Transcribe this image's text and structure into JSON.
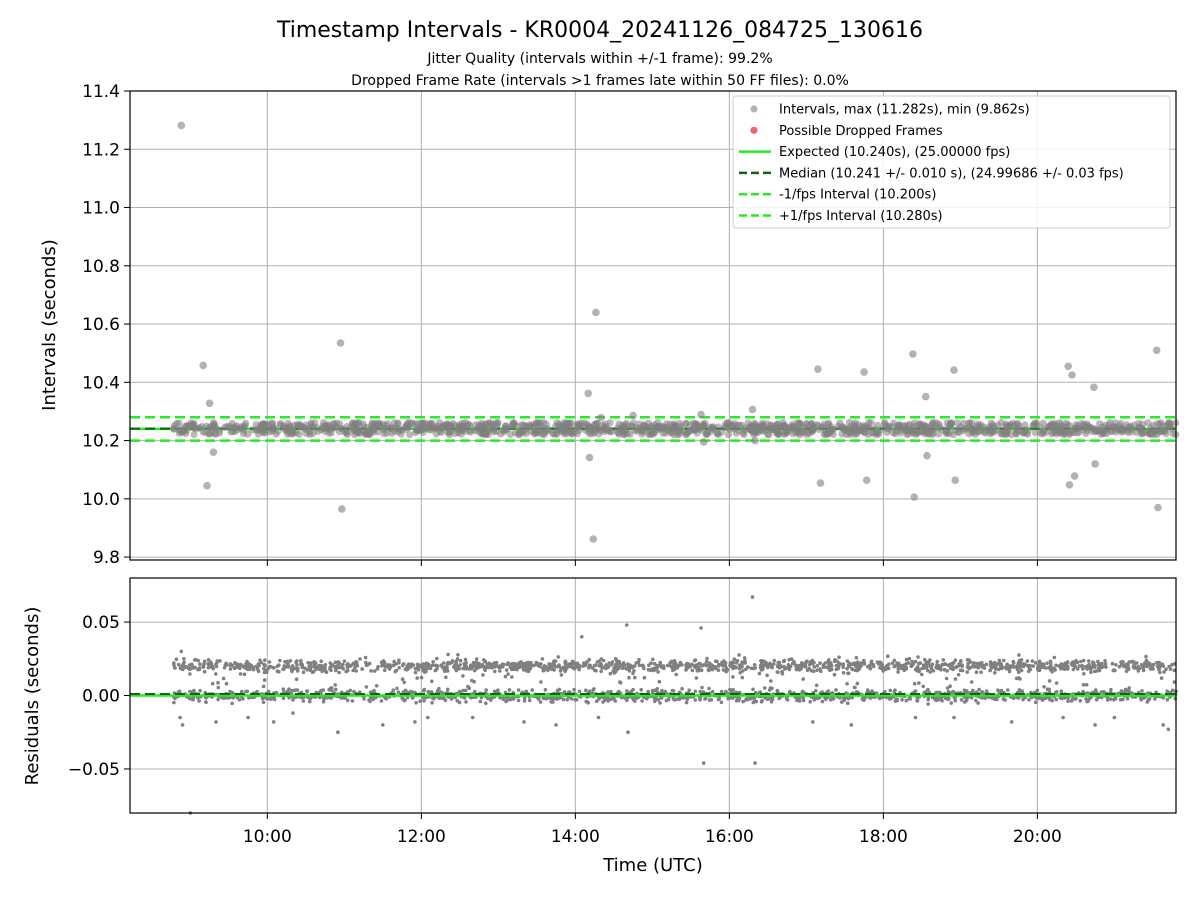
{
  "figure": {
    "title": "Timestamp Intervals - KR0004_20241126_084725_130616",
    "subtitle_1": "Jitter Quality (intervals within +/-1 frame): 99.2%",
    "subtitle_2": "Dropped Frame Rate (intervals >1 frames late within 50 FF files): 0.0%"
  },
  "colors": {
    "points": "#808080",
    "dropped": "#ee5555",
    "expected": "#22ee22",
    "median": "#116611",
    "bounds": "#22ee22",
    "grid": "#b0b0b0"
  },
  "chart_data": [
    {
      "type": "scatter",
      "ylabel": "Intervals (seconds)",
      "xlim": [
        "08:13",
        "21:48"
      ],
      "ylim": [
        9.79,
        11.4
      ],
      "yticks": [
        "9.8",
        "10.0",
        "10.2",
        "10.4",
        "10.6",
        "10.8",
        "11.0",
        "11.2",
        "11.4"
      ],
      "ytick_values": [
        9.8,
        10.0,
        10.2,
        10.4,
        10.6,
        10.8,
        11.0,
        11.2,
        11.4
      ],
      "xticks": [
        "10:00",
        "12:00",
        "14:00",
        "16:00",
        "18:00",
        "20:00"
      ],
      "legend_position": "upper right",
      "legend": [
        "Intervals, max (11.282s), min (9.862s)",
        "Possible Dropped Frames",
        "Expected (10.240s), (25.00000 fps)",
        "Median (10.241 +/- 0.010 s), (24.99686 +/- 0.03 fps)",
        "-1/fps Interval (10.200s)",
        "+1/fps Interval (10.280s)"
      ],
      "lines": {
        "expected": 10.24,
        "median": 10.241,
        "lower_bound": 10.2,
        "upper_bound": 10.28
      },
      "dense_band": {
        "x_start": "08:47",
        "x_end": "21:48",
        "y_low": 10.22,
        "y_high": 10.262
      },
      "outliers": {
        "x": [
          "08:53",
          "09:10",
          "09:13",
          "09:15",
          "09:18",
          "10:57",
          "10:58",
          "14:10",
          "14:11",
          "14:14",
          "14:16",
          "14:20",
          "14:45",
          "15:38",
          "15:40",
          "16:18",
          "16:20",
          "17:09",
          "17:11",
          "17:45",
          "17:47",
          "18:23",
          "18:24",
          "18:33",
          "18:34",
          "18:55",
          "18:56",
          "20:24",
          "20:25",
          "20:27",
          "20:29",
          "20:44",
          "20:45",
          "21:33",
          "21:34"
        ],
        "y": [
          11.282,
          10.458,
          10.045,
          10.328,
          10.16,
          10.535,
          9.965,
          10.362,
          10.142,
          9.862,
          10.64,
          10.279,
          10.286,
          10.289,
          10.195,
          10.307,
          10.2,
          10.445,
          10.054,
          10.435,
          10.064,
          10.497,
          10.006,
          10.351,
          10.148,
          10.442,
          10.064,
          10.455,
          10.048,
          10.425,
          10.078,
          10.383,
          10.12,
          10.51,
          9.97
        ]
      }
    },
    {
      "type": "scatter",
      "xlabel": "Time (UTC)",
      "ylabel": "Residuals (seconds)",
      "xlim": [
        "08:13",
        "21:48"
      ],
      "ylim": [
        -0.08,
        0.08
      ],
      "yticks": [
        "−0.05",
        "0.00",
        "0.05"
      ],
      "ytick_values": [
        -0.05,
        0.0,
        0.05
      ],
      "xticks": [
        "10:00",
        "12:00",
        "14:00",
        "16:00",
        "18:00",
        "20:00"
      ],
      "lines": {
        "expected": 0.0,
        "median": 0.001
      },
      "bands": [
        {
          "x_start": "08:47",
          "x_end": "21:48",
          "center": 0.02,
          "spread": 0.004
        },
        {
          "x_start": "08:47",
          "x_end": "21:48",
          "center": 0.0,
          "spread": 0.004
        }
      ],
      "outliers": {
        "x": [
          "08:52",
          "08:53",
          "08:54",
          "08:55",
          "09:20",
          "09:45",
          "10:05",
          "10:20",
          "10:55",
          "11:30",
          "11:55",
          "12:05",
          "12:40",
          "13:20",
          "13:45",
          "14:05",
          "14:18",
          "14:40",
          "14:41",
          "15:38",
          "15:40",
          "16:18",
          "16:20",
          "17:05",
          "17:35",
          "18:25",
          "18:55",
          "19:40",
          "20:20",
          "20:45",
          "21:00",
          "21:38",
          "21:42",
          "09:00"
        ],
        "y": [
          -0.015,
          0.03,
          -0.02,
          0.025,
          -0.018,
          -0.015,
          -0.018,
          -0.012,
          -0.025,
          -0.02,
          -0.018,
          -0.015,
          -0.015,
          -0.018,
          -0.02,
          0.04,
          -0.015,
          0.048,
          -0.025,
          0.046,
          -0.046,
          0.067,
          -0.046,
          -0.018,
          -0.02,
          -0.015,
          -0.015,
          -0.018,
          -0.015,
          -0.02,
          -0.015,
          -0.02,
          -0.023,
          -0.08
        ]
      }
    }
  ]
}
